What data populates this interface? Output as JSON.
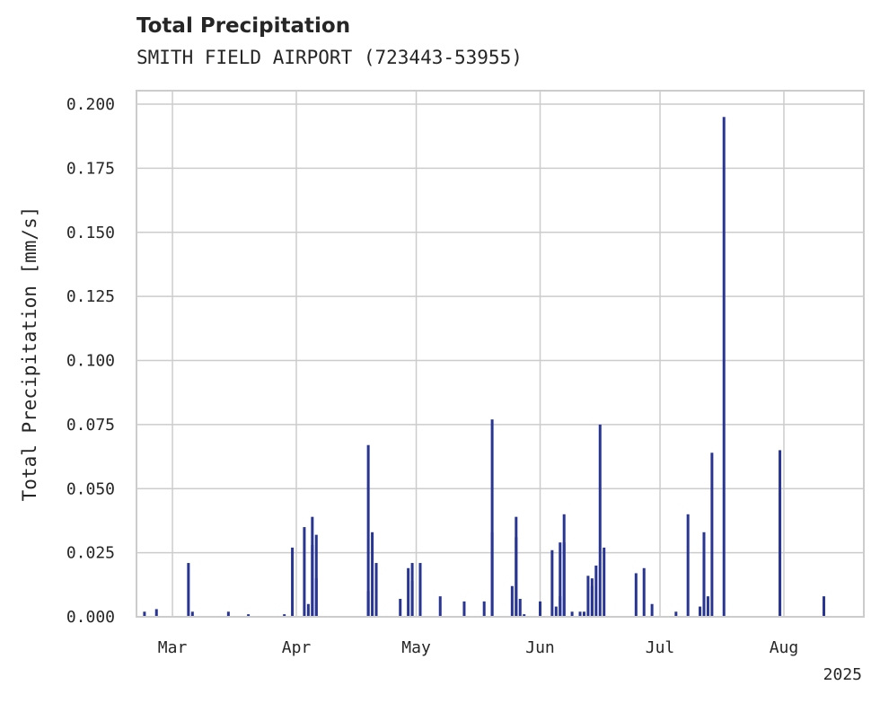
{
  "chart_data": {
    "type": "bar",
    "title": "Total Precipitation",
    "subtitle": "SMITH FIELD AIRPORT (723443-53955)",
    "xlabel": "",
    "ylabel": "Total Precipitation [mm/s]",
    "ylim": [
      0,
      0.2
    ],
    "yticks": [
      "0.000",
      "0.025",
      "0.050",
      "0.075",
      "0.100",
      "0.125",
      "0.150",
      "0.175",
      "0.200"
    ],
    "xlim": [
      "2025-02-20",
      "2025-08-21"
    ],
    "xticks": [
      {
        "date": "2025-03-01",
        "label": "Mar"
      },
      {
        "date": "2025-04-01",
        "label": "Apr"
      },
      {
        "date": "2025-05-01",
        "label": "May"
      },
      {
        "date": "2025-06-01",
        "label": "Jun"
      },
      {
        "date": "2025-07-01",
        "label": "Jul"
      },
      {
        "date": "2025-08-01",
        "label": "Aug"
      }
    ],
    "year_label": "2025",
    "grid": true,
    "bar_color": "#283593",
    "points": [
      [
        "2025-02-22",
        0.002
      ],
      [
        "2025-02-25",
        0.003
      ],
      [
        "2025-03-05",
        0.021
      ],
      [
        "2025-03-06",
        0.002
      ],
      [
        "2025-03-15",
        0.002
      ],
      [
        "2025-03-20",
        0.001
      ],
      [
        "2025-03-29",
        0.001
      ],
      [
        "2025-03-31",
        0.027
      ],
      [
        "2025-04-03",
        0.035
      ],
      [
        "2025-04-04",
        0.005
      ],
      [
        "2025-04-05",
        0.028
      ],
      [
        "2025-04-05",
        0.039
      ],
      [
        "2025-04-06",
        0.032
      ],
      [
        "2025-04-06",
        0.015
      ],
      [
        "2025-04-19",
        0.067
      ],
      [
        "2025-04-19",
        0.01
      ],
      [
        "2025-04-20",
        0.033
      ],
      [
        "2025-04-21",
        0.021
      ],
      [
        "2025-04-27",
        0.007
      ],
      [
        "2025-04-29",
        0.019
      ],
      [
        "2025-04-30",
        0.021
      ],
      [
        "2025-04-30",
        0.014
      ],
      [
        "2025-05-02",
        0.021
      ],
      [
        "2025-05-02",
        0.015
      ],
      [
        "2025-05-07",
        0.008
      ],
      [
        "2025-05-13",
        0.006
      ],
      [
        "2025-05-18",
        0.006
      ],
      [
        "2025-05-20",
        0.033
      ],
      [
        "2025-05-20",
        0.077
      ],
      [
        "2025-05-25",
        0.012
      ],
      [
        "2025-05-26",
        0.039
      ],
      [
        "2025-05-26",
        0.031
      ],
      [
        "2025-05-27",
        0.007
      ],
      [
        "2025-05-28",
        0.001
      ],
      [
        "2025-06-01",
        0.006
      ],
      [
        "2025-06-04",
        0.026
      ],
      [
        "2025-06-05",
        0.004
      ],
      [
        "2025-06-06",
        0.008
      ],
      [
        "2025-06-06",
        0.029
      ],
      [
        "2025-06-07",
        0.04
      ],
      [
        "2025-06-07",
        0.029
      ],
      [
        "2025-06-09",
        0.002
      ],
      [
        "2025-06-11",
        0.002
      ],
      [
        "2025-06-12",
        0.002
      ],
      [
        "2025-06-13",
        0.016
      ],
      [
        "2025-06-14",
        0.015
      ],
      [
        "2025-06-14",
        0.012
      ],
      [
        "2025-06-15",
        0.02
      ],
      [
        "2025-06-16",
        0.075
      ],
      [
        "2025-06-17",
        0.027
      ],
      [
        "2025-06-25",
        0.017
      ],
      [
        "2025-06-27",
        0.019
      ],
      [
        "2025-06-29",
        0.005
      ],
      [
        "2025-07-05",
        0.002
      ],
      [
        "2025-07-08",
        0.04
      ],
      [
        "2025-07-11",
        0.004
      ],
      [
        "2025-07-12",
        0.033
      ],
      [
        "2025-07-12",
        0.024
      ],
      [
        "2025-07-13",
        0.008
      ],
      [
        "2025-07-14",
        0.064
      ],
      [
        "2025-07-17",
        0.195
      ],
      [
        "2025-07-31",
        0.049
      ],
      [
        "2025-07-31",
        0.065
      ],
      [
        "2025-08-11",
        0.008
      ],
      [
        "2025-08-11",
        0.005
      ]
    ]
  }
}
